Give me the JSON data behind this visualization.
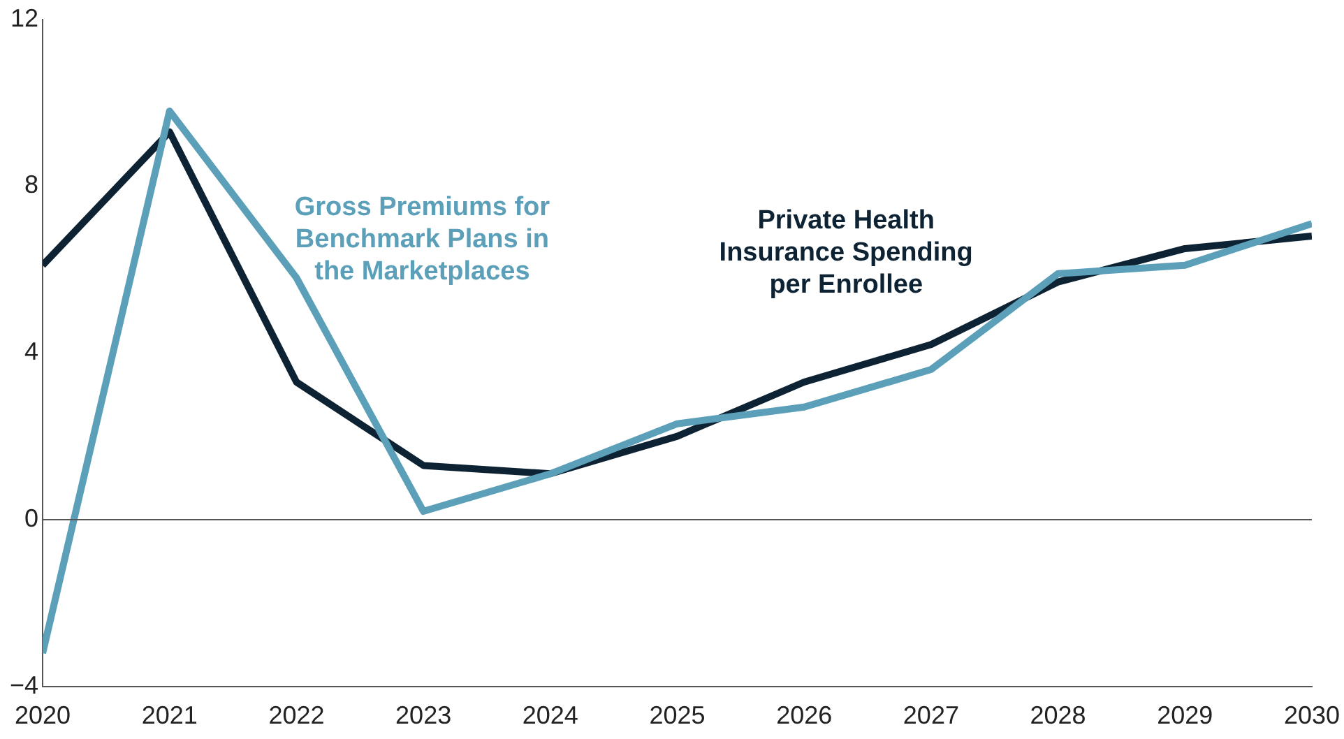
{
  "chart_data": {
    "type": "line",
    "x": [
      2020,
      2021,
      2022,
      2023,
      2024,
      2025,
      2026,
      2027,
      2028,
      2029,
      2030
    ],
    "series": [
      {
        "name": "Gross Premiums for Benchmark Plans in the Marketplaces",
        "color": "#5b9fb8",
        "values": [
          -3.2,
          9.8,
          5.8,
          0.2,
          1.1,
          2.3,
          2.7,
          3.6,
          5.9,
          6.1,
          7.1
        ]
      },
      {
        "name": "Private Health Insurance Spending per Enrollee",
        "color": "#0d2233",
        "values": [
          6.1,
          9.3,
          3.3,
          1.3,
          1.1,
          2.0,
          3.3,
          4.2,
          5.7,
          6.5,
          6.8
        ]
      }
    ],
    "xlim": [
      2020,
      2030
    ],
    "xticks": [
      2020,
      2021,
      2022,
      2023,
      2024,
      2025,
      2026,
      2027,
      2028,
      2029,
      2030
    ],
    "ylim": [
      -4,
      12
    ],
    "yticks": [
      {
        "value": -4,
        "label": "−4"
      },
      0,
      4,
      8,
      12
    ],
    "ref_lines": [
      {
        "axis": "y",
        "value": 0,
        "color": "#555555"
      }
    ],
    "grid": false,
    "legend": false,
    "marker": "none",
    "line_style": "solid"
  }
}
